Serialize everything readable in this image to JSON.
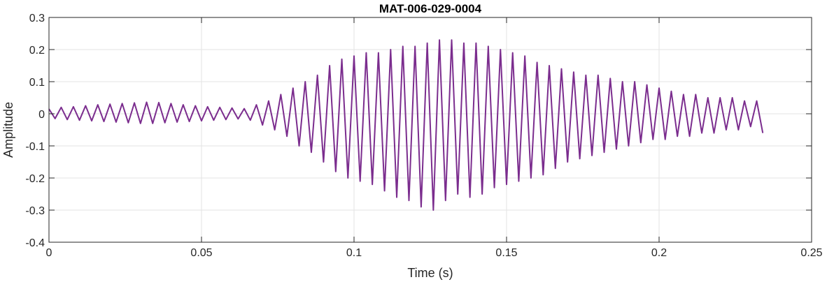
{
  "chart_data": {
    "type": "line",
    "title": "MAT-006-029-0004",
    "xlabel": "Time (s)",
    "ylabel": "Amplitude",
    "xlim": [
      0,
      0.25
    ],
    "ylim": [
      -0.4,
      0.3
    ],
    "grid": true,
    "x_ticks": [
      0,
      0.05,
      0.1,
      0.15,
      0.2,
      0.25
    ],
    "x_tick_labels": [
      "0",
      "0.05",
      "0.1",
      "0.15",
      "0.2",
      "0.25"
    ],
    "y_ticks": [
      -0.4,
      -0.3,
      -0.2,
      -0.1,
      0,
      0.1,
      0.2,
      0.3
    ],
    "y_tick_labels": [
      "-0.4",
      "-0.3",
      "-0.2",
      "-0.1",
      "0",
      "0.1",
      "0.2",
      "0.3"
    ],
    "series": [
      {
        "color": "#7B2D8E",
        "x": [
          0.0,
          0.002,
          0.004,
          0.006,
          0.008,
          0.01,
          0.012,
          0.014,
          0.016,
          0.018,
          0.02,
          0.022,
          0.024,
          0.026,
          0.028,
          0.03,
          0.032,
          0.034,
          0.036,
          0.038,
          0.04,
          0.042,
          0.044,
          0.046,
          0.048,
          0.05,
          0.052,
          0.054,
          0.056,
          0.058,
          0.06,
          0.062,
          0.064,
          0.066,
          0.068,
          0.07,
          0.072,
          0.074,
          0.076,
          0.078,
          0.08,
          0.082,
          0.084,
          0.086,
          0.088,
          0.09,
          0.092,
          0.094,
          0.096,
          0.098,
          0.1,
          0.102,
          0.104,
          0.106,
          0.108,
          0.11,
          0.112,
          0.114,
          0.116,
          0.118,
          0.12,
          0.122,
          0.124,
          0.126,
          0.128,
          0.13,
          0.132,
          0.134,
          0.136,
          0.138,
          0.14,
          0.142,
          0.144,
          0.146,
          0.148,
          0.15,
          0.152,
          0.154,
          0.156,
          0.158,
          0.16,
          0.162,
          0.164,
          0.166,
          0.168,
          0.17,
          0.172,
          0.174,
          0.176,
          0.178,
          0.18,
          0.182,
          0.184,
          0.186,
          0.188,
          0.19,
          0.192,
          0.194,
          0.196,
          0.198,
          0.2,
          0.202,
          0.204,
          0.206,
          0.208,
          0.21,
          0.212,
          0.214,
          0.216,
          0.218,
          0.22,
          0.222,
          0.224,
          0.226,
          0.228,
          0.23,
          0.232,
          0.234
        ],
        "y": [
          0.015,
          -0.015,
          0.02,
          -0.018,
          0.022,
          -0.02,
          0.025,
          -0.022,
          0.028,
          -0.024,
          0.03,
          -0.026,
          0.032,
          -0.028,
          0.034,
          -0.03,
          0.036,
          -0.03,
          0.035,
          -0.028,
          0.032,
          -0.026,
          0.028,
          -0.024,
          0.025,
          -0.022,
          0.022,
          -0.02,
          0.02,
          -0.018,
          0.018,
          -0.016,
          0.016,
          -0.02,
          0.028,
          -0.035,
          0.04,
          -0.05,
          0.06,
          -0.07,
          0.08,
          -0.1,
          0.1,
          -0.12,
          0.12,
          -0.15,
          0.15,
          -0.18,
          0.17,
          -0.2,
          0.18,
          -0.21,
          0.19,
          -0.22,
          0.19,
          -0.24,
          0.2,
          -0.26,
          0.21,
          -0.27,
          0.21,
          -0.29,
          0.22,
          -0.3,
          0.23,
          -0.27,
          0.23,
          -0.25,
          0.22,
          -0.26,
          0.22,
          -0.25,
          0.21,
          -0.23,
          0.2,
          -0.22,
          0.19,
          -0.21,
          0.18,
          -0.2,
          0.16,
          -0.19,
          0.15,
          -0.17,
          0.14,
          -0.15,
          0.13,
          -0.14,
          0.12,
          -0.13,
          0.12,
          -0.12,
          0.11,
          -0.11,
          0.1,
          -0.1,
          0.1,
          -0.09,
          0.09,
          -0.08,
          0.08,
          -0.08,
          0.07,
          -0.07,
          0.06,
          -0.07,
          0.06,
          -0.06,
          0.05,
          -0.06,
          0.05,
          -0.05,
          0.05,
          -0.05,
          0.04,
          -0.04,
          0.04,
          -0.06
        ]
      }
    ]
  }
}
